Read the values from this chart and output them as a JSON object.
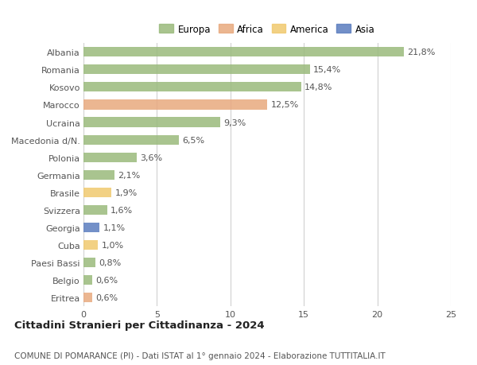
{
  "countries": [
    "Albania",
    "Romania",
    "Kosovo",
    "Marocco",
    "Ucraina",
    "Macedonia d/N.",
    "Polonia",
    "Germania",
    "Brasile",
    "Svizzera",
    "Georgia",
    "Cuba",
    "Paesi Bassi",
    "Belgio",
    "Eritrea"
  ],
  "values": [
    21.8,
    15.4,
    14.8,
    12.5,
    9.3,
    6.5,
    3.6,
    2.1,
    1.9,
    1.6,
    1.1,
    1.0,
    0.8,
    0.6,
    0.6
  ],
  "labels": [
    "21,8%",
    "15,4%",
    "14,8%",
    "12,5%",
    "9,3%",
    "6,5%",
    "3,6%",
    "2,1%",
    "1,9%",
    "1,6%",
    "1,1%",
    "1,0%",
    "0,8%",
    "0,6%",
    "0,6%"
  ],
  "categories": [
    "Europa",
    "Africa",
    "America",
    "Asia"
  ],
  "continent": [
    "Europa",
    "Europa",
    "Europa",
    "Africa",
    "Europa",
    "Europa",
    "Europa",
    "Europa",
    "America",
    "Europa",
    "Asia",
    "America",
    "Europa",
    "Europa",
    "Africa"
  ],
  "colors": {
    "Europa": "#9aba7c",
    "Africa": "#e8a97e",
    "America": "#f0c96e",
    "Asia": "#5b7dbf"
  },
  "xlim": [
    0,
    25
  ],
  "xticks": [
    0,
    5,
    10,
    15,
    20,
    25
  ],
  "title": "Cittadini Stranieri per Cittadinanza - 2024",
  "subtitle": "COMUNE DI POMARANCE (PI) - Dati ISTAT al 1° gennaio 2024 - Elaborazione TUTTITALIA.IT",
  "background_color": "#ffffff",
  "grid_color": "#d0d0d0",
  "bar_height": 0.55,
  "label_fontsize": 8,
  "tick_fontsize": 8,
  "title_fontsize": 9.5,
  "subtitle_fontsize": 7.5
}
